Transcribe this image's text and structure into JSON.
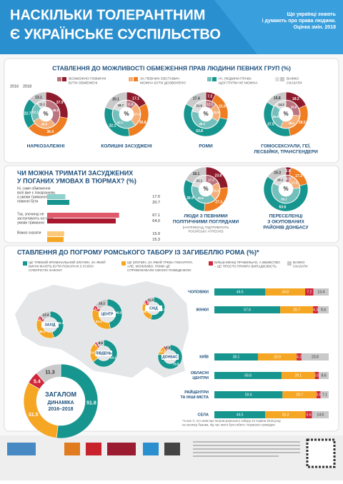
{
  "header": {
    "title": [
      "НАСКІЛЬКИ ТОЛЕРАНТНИМ",
      "Є УКРАЇНСЬКЕ СУСПІЛЬСТВО"
    ],
    "subtitle": [
      "Що українці знають",
      "і думають про права людини.",
      "Оцінка змін. 2018"
    ]
  },
  "chart_data": [
    {
      "type": "donut",
      "title": "СТАВЛЕННЯ ДО МОЖЛИВОСТІ ОБМЕЖЕННЯ ПРАВ ЛЮДИНИ ПЕВНИХ ГРУП (%)",
      "years": [
        "2016",
        "2018"
      ],
      "center_label": "%",
      "legend": [
        {
          "label": [
            "ВОЗМОЖНО ПОВИННІ",
            "БУТИ ОБМЕЖЕНІ"
          ],
          "color": "#8e1b2c"
        },
        {
          "label": [
            "ЗА ПЕВНИХ ОБСТАВИН",
            "МОЖНА БУТИ ДОЗВОЛЕНО"
          ],
          "color": "#ef7d22"
        },
        {
          "label": [
            "НІ, ЛЮДИНИ ПРАВА",
            "ЩОЇ ГРУПИ НЕ МОЖНА"
          ],
          "color": "#17968f"
        },
        {
          "label": [
            "ВАЖКО",
            "СКАЗАТИ"
          ],
          "color": "#c9c9c9"
        }
      ],
      "groups": [
        {
          "name": [
            "НАРКОЗАЛЕЖНІ"
          ],
          "values_2016": [
            38.2,
            28.6,
            22.1,
            11.1
          ],
          "values_2018": [
            27.9,
            36.4,
            22.7,
            13.1
          ]
        },
        {
          "name": [
            "КОЛИШНІ ЗАСУДЖЕНІ"
          ],
          "values_2016": [
            11.8,
            27.4,
            42.1,
            18.7
          ],
          "values_2018": [
            17.1,
            30.8,
            32.1,
            20.1
          ]
        },
        {
          "name": [
            "РОМИ"
          ],
          "values_2016": [
            12.3,
            20.9,
            45.2,
            21.6
          ],
          "values_2018": [
            7.2,
            21.6,
            53.8,
            17.4
          ]
        },
        {
          "name": [
            "ГОМОСЕКСУАЛИ, ГЕЇ,",
            "ЛЕСБІЙКИ, ТРАНСГЕНДЕРИ"
          ],
          "values_2016": [
            26.8,
            29.1,
            29.9,
            14.2
          ],
          "values_2018": [
            18.2,
            28.5,
            37.5,
            15.8
          ]
        },
        {
          "name": [
            "ЛЮДИ З ПЕВНИМИ",
            "ПОЛІТИЧНИМИ ПОГЛЯДАМИ"
          ],
          "note": [
            "(НАПРИКЛАД, ПІДТРИМУЮТЬ",
            "РОСІЙСЬКУ АГРЕСІЮ)"
          ],
          "values_2016": [
            17.2,
            21.1,
            40.6,
            21.1
          ],
          "values_2018": [
            23.8,
            27.3,
            30.9,
            18.1
          ]
        },
        {
          "name": [
            "ПЕРЕСЕЛЕНЦІ",
            "З ОКУПОВАНИХ",
            "РАЙОНІВ ДОНБАСУ"
          ],
          "values_2016": [
            6.5,
            17.2,
            58.2,
            18.1
          ],
          "values_2018": [
            3.8,
            17.3,
            63.6,
            15.3
          ]
        }
      ]
    },
    {
      "type": "bar",
      "title": [
        "ЧИ МОЖНА ТРИМАТИ ЗАСУДЖЕНИХ",
        "У ПОГАНИХ УМОВАХ В ТЮРМАХ? (%)"
      ],
      "xlim": [
        0,
        100
      ],
      "categories": [
        [
          "Ні, саме обмеження",
          "волі вже є покаранням,",
          "а умови тримання",
          "повинні бути"
        ],
        [
          "Так, злочинці не",
          "заслуговують на гарні",
          "умови тримання"
        ],
        [
          "Важко сказати"
        ]
      ],
      "colors": [
        [
          "#8fd1cd",
          "#17968f"
        ],
        [
          "#e0596b",
          "#a8172d"
        ],
        [
          "#fbc97a",
          "#f5a623"
        ]
      ],
      "series": [
        {
          "name": "2016",
          "values": [
            17.0,
            67.1,
            15.9
          ],
          "value_labels": [
            "17.0",
            "67.1",
            "15.9"
          ]
        },
        {
          "name": "2018",
          "values": [
            20.7,
            64.0,
            15.3
          ],
          "value_labels": [
            "20.7",
            "64.0",
            "15.3"
          ]
        }
      ]
    },
    {
      "type": "stacked_bar",
      "title": "СТАВЛЕННЯ ДО ПОГРОМУ РОМСЬКОГО ТАБОРУ ІЗ ЗАГИБЕЛЛЮ РОМА (%)*",
      "xlim": [
        0,
        100
      ],
      "series": [
        {
          "name": [
            "ЦЕ ТЯЖКИЙ КРИМІНАЛЬНИЙ ЗЛОЧИН, ЗА ЯКИЙ",
            "ВИННІ МАЮТЬ БУТИ ПОКАРАНІ З УСІЄЮ",
            "СУВОРІСТЮ ЗАКОНУ"
          ],
          "color": "#17968f",
          "values": [
            44.6,
            57.6,
            38.1,
            58.8,
            59.6,
            44.5
          ]
        },
        {
          "name": [
            "ЦЕ ЗЛОЧИН, ЗА ЯКИЙ ТРЕБА ПОКАРАТИ,",
            "АЛЕ, МОЖЛИВО, РОМИ ЦЕ",
            "СПРОВОКУВАЛИ СВОЄЮ ПОВЕДІНКОЮ"
          ],
          "color": "#f5a623",
          "values": [
            34.8,
            28.7,
            33.9,
            29.1,
            29.7,
            35.3
          ]
        },
        {
          "name": [
            "БІЛЬШ-МЕНШ ПРАВИЛЬНО, А ВБИВСТВО",
            "– ЦЕ ПРОСТО ПРИКРА ВИПАДКОВІСТЬ"
          ],
          "color": "#d0263a",
          "values": [
            7.2,
            4.3,
            4.2,
            3.5,
            3.6,
            5.6
          ]
        },
        {
          "name": [
            "ВАЖКО",
            "СКАЗАТИ"
          ],
          "color": "#c9c9c9",
          "values": [
            13.4,
            9.4,
            23.8,
            8.6,
            7.1,
            14.6
          ]
        }
      ],
      "categories": [
        [
          "ЧОЛОВІКИ"
        ],
        [
          "ЖІНКИ"
        ],
        [
          "КИЇВ"
        ],
        [
          "ОБЛАСНІ",
          "ЦЕНТРИ"
        ],
        [
          "РАЙЦЕНТРИ",
          "ТА ІНШІ МІСТА"
        ],
        [
          "СЕЛА"
        ]
      ],
      "regions": [
        {
          "name": "ЗАХІД",
          "values": [
            45.3,
            36.2,
            5.1,
            13.4
          ]
        },
        {
          "name": "ЦЕНТР",
          "values": [
            46.5,
            33.4,
            4.9,
            15.2
          ]
        },
        {
          "name": "СХІД",
          "values": [
            54.3,
            28.1,
            6.2,
            11.4
          ]
        },
        {
          "name": "ПІВДЕНЬ",
          "values": [
            64.1,
            23.8,
            3.2,
            8.9
          ]
        },
        {
          "name": "ДОНБАС",
          "values": [
            78.8,
            12.1,
            2.3,
            6.8
          ]
        }
      ],
      "total": {
        "title": "ЗАГАЛОМ",
        "subtitle": [
          "ДИНАМІКА",
          "2016–2018"
        ],
        "values": [
          51.8,
          31.5,
          5.4,
          11.3
        ]
      },
      "footnote": [
        "*Із них ті, хто знав про погром ромського табору 24 червня 2018 року",
        "на околиці Львова, під час якого було вбито і поранено громадян"
      ]
    }
  ]
}
